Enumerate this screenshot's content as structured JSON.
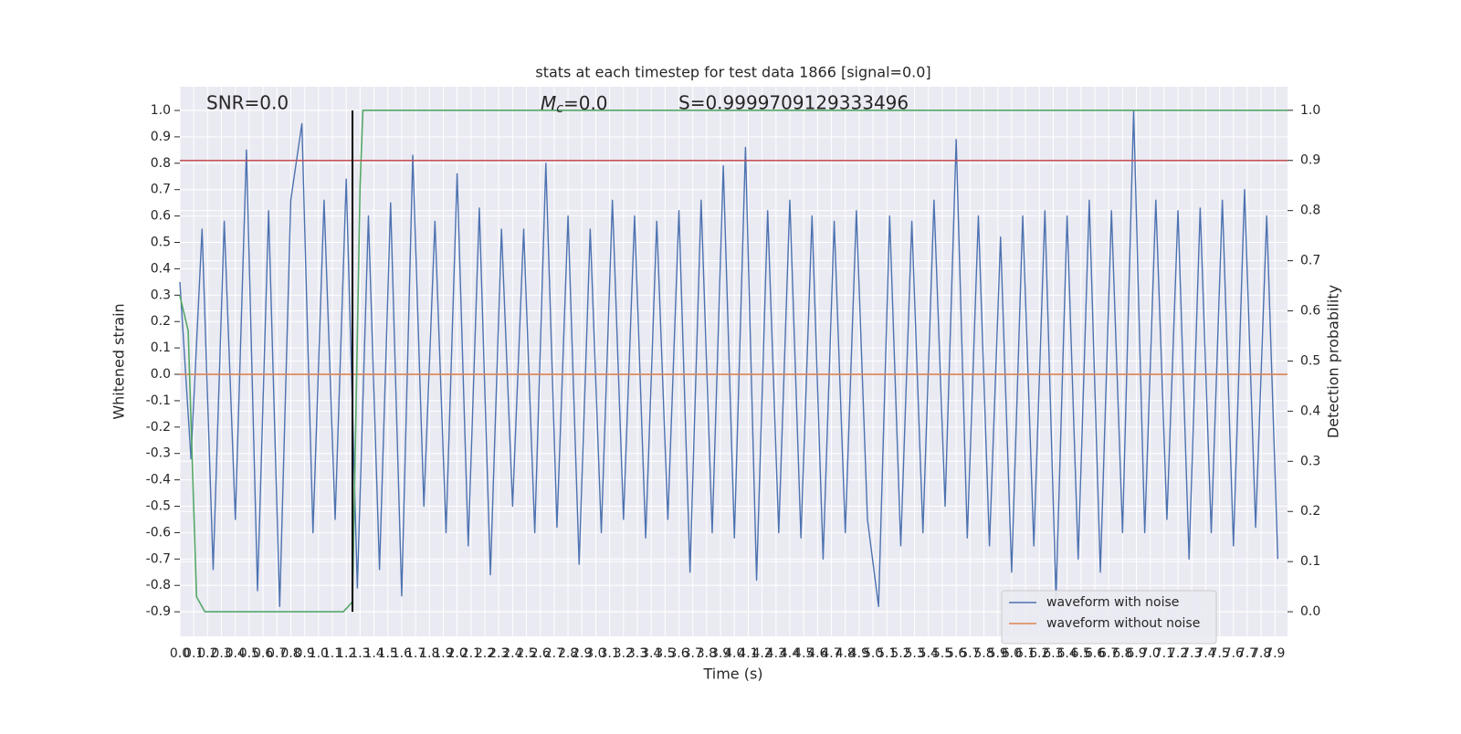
{
  "chart_data": {
    "type": "line",
    "title": "stats at each timestep for test data 1866 [signal=0.0]",
    "xlabel": "Time (s)",
    "ylabel": "Whitened strain",
    "y2label": "Detection probability",
    "annotations": {
      "snr": "SNR=0.0",
      "mc": {
        "symbol": "M",
        "sub": "c",
        "text": "=0.0"
      },
      "s": "S=0.9999709129333496"
    },
    "xlim": [
      0,
      7.99
    ],
    "ylim": [
      -0.993,
      1.09
    ],
    "y2lim": [
      -0.049,
      1.047
    ],
    "xticks": [
      {
        "value": 0,
        "label": "0.0"
      },
      0.1,
      0.2,
      0.3,
      0.4,
      0.5,
      0.6,
      0.7,
      0.8,
      0.9,
      {
        "value": 1,
        "label": "1.0"
      },
      1.1,
      1.2,
      1.3,
      1.4,
      1.5,
      1.6,
      1.7,
      1.8,
      1.9,
      {
        "value": 2,
        "label": "2.0"
      },
      2.1,
      2.2,
      2.3,
      2.4,
      2.5,
      2.6,
      2.7,
      2.8,
      2.9,
      {
        "value": 3,
        "label": "3.0"
      },
      3.1,
      3.2,
      3.3,
      3.4,
      3.5,
      3.6,
      3.7,
      3.8,
      3.9,
      {
        "value": 4,
        "label": "4.0"
      },
      4.1,
      4.2,
      4.3,
      4.4,
      4.5,
      4.6,
      4.7,
      4.8,
      4.9,
      {
        "value": 5,
        "label": "5.0"
      },
      5.1,
      5.2,
      5.3,
      5.4,
      5.5,
      5.6,
      5.7,
      5.8,
      5.9,
      {
        "value": 6,
        "label": "6.0"
      },
      6.1,
      6.2,
      6.3,
      6.4,
      6.5,
      6.6,
      6.7,
      6.8,
      6.9,
      {
        "value": 7,
        "label": "7.0"
      },
      7.1,
      7.2,
      7.3,
      7.4,
      7.5,
      7.6,
      7.7,
      7.8,
      7.9
    ],
    "yticks": [
      -0.9,
      -0.8,
      -0.7,
      -0.6,
      -0.5,
      -0.4,
      -0.3,
      -0.2,
      -0.1,
      {
        "value": 0,
        "label": "0.0"
      },
      0.1,
      0.2,
      0.3,
      0.4,
      0.5,
      0.6,
      0.7,
      0.8,
      0.9,
      {
        "value": 1,
        "label": "1.0"
      }
    ],
    "y2ticks": [
      {
        "value": 0,
        "label": "0.0"
      },
      0.1,
      0.2,
      0.3,
      0.4,
      0.5,
      0.6,
      0.7,
      0.8,
      0.9,
      {
        "value": 1,
        "label": "1.0"
      }
    ],
    "grid": true,
    "legend": "lower right",
    "series": [
      {
        "name": "waveform with noise",
        "color": "#4c72b0",
        "x": [
          0,
          0.08,
          0.16,
          0.24,
          0.32,
          0.4,
          0.48,
          0.56,
          0.64,
          0.72,
          0.8,
          0.88,
          0.96,
          1.04,
          1.12,
          1.2,
          1.28,
          1.36,
          1.44,
          1.52,
          1.6,
          1.68,
          1.76,
          1.84,
          1.92,
          2.0,
          2.08,
          2.16,
          2.24,
          2.32,
          2.4,
          2.48,
          2.56,
          2.64,
          2.72,
          2.8,
          2.88,
          2.96,
          3.04,
          3.12,
          3.2,
          3.28,
          3.36,
          3.44,
          3.52,
          3.6,
          3.68,
          3.76,
          3.84,
          3.92,
          4.0,
          4.08,
          4.16,
          4.24,
          4.32,
          4.4,
          4.48,
          4.56,
          4.64,
          4.72,
          4.8,
          4.88,
          4.96,
          5.04,
          5.12,
          5.2,
          5.28,
          5.36,
          5.44,
          5.52,
          5.6,
          5.68,
          5.76,
          5.84,
          5.92,
          6.0,
          6.08,
          6.16,
          6.24,
          6.32,
          6.4,
          6.48,
          6.56,
          6.64,
          6.72,
          6.8,
          6.88,
          6.96,
          7.04,
          7.12,
          7.2,
          7.28,
          7.36,
          7.44,
          7.52,
          7.6,
          7.68,
          7.76,
          7.84,
          7.92
        ],
        "values": [
          0.35,
          -0.32,
          0.55,
          -0.74,
          0.58,
          -0.55,
          0.85,
          -0.82,
          0.62,
          -0.88,
          0.66,
          0.95,
          -0.6,
          0.66,
          -0.55,
          0.74,
          -0.81,
          0.6,
          -0.74,
          0.65,
          -0.84,
          0.83,
          -0.5,
          0.58,
          -0.6,
          0.76,
          -0.65,
          0.63,
          -0.76,
          0.55,
          -0.5,
          0.55,
          -0.6,
          0.8,
          -0.58,
          0.6,
          -0.72,
          0.55,
          -0.6,
          0.66,
          -0.55,
          0.6,
          -0.62,
          0.58,
          -0.55,
          0.62,
          -0.75,
          0.66,
          -0.6,
          0.79,
          -0.62,
          0.86,
          -0.78,
          0.62,
          -0.6,
          0.66,
          -0.62,
          0.6,
          -0.7,
          0.58,
          -0.6,
          0.62,
          -0.55,
          -0.88,
          0.6,
          -0.65,
          0.58,
          -0.6,
          0.66,
          -0.5,
          0.89,
          -0.62,
          0.6,
          -0.65,
          0.52,
          -0.75,
          0.6,
          -0.65,
          0.62,
          -0.85,
          0.6,
          -0.7,
          0.66,
          -0.75,
          0.62,
          -0.6,
          1.0,
          -0.6,
          0.66,
          -0.55,
          0.62,
          -0.7,
          0.63,
          -0.6,
          0.66,
          -0.65,
          0.7,
          -0.58,
          0.6,
          -0.7
        ]
      },
      {
        "name": "waveform without noise",
        "color": "#dd8452",
        "x": [
          0,
          7.99
        ],
        "values": [
          0,
          0
        ]
      },
      {
        "color": "#55a868",
        "axis": "y2",
        "x": [
          0,
          0.06,
          0.12,
          0.18,
          1.18,
          1.245,
          1.3,
          1.32,
          7.99
        ],
        "values": [
          0.63,
          0.56,
          0.03,
          0,
          0,
          0.02,
          0.85,
          1.0,
          1.0
        ]
      }
    ],
    "hline": {
      "value": 0.9,
      "axis": "y2",
      "color": "#c44e52"
    },
    "vline": {
      "x": 1.245,
      "y": [
        -0.9,
        1.0
      ],
      "color": "#000000"
    }
  }
}
